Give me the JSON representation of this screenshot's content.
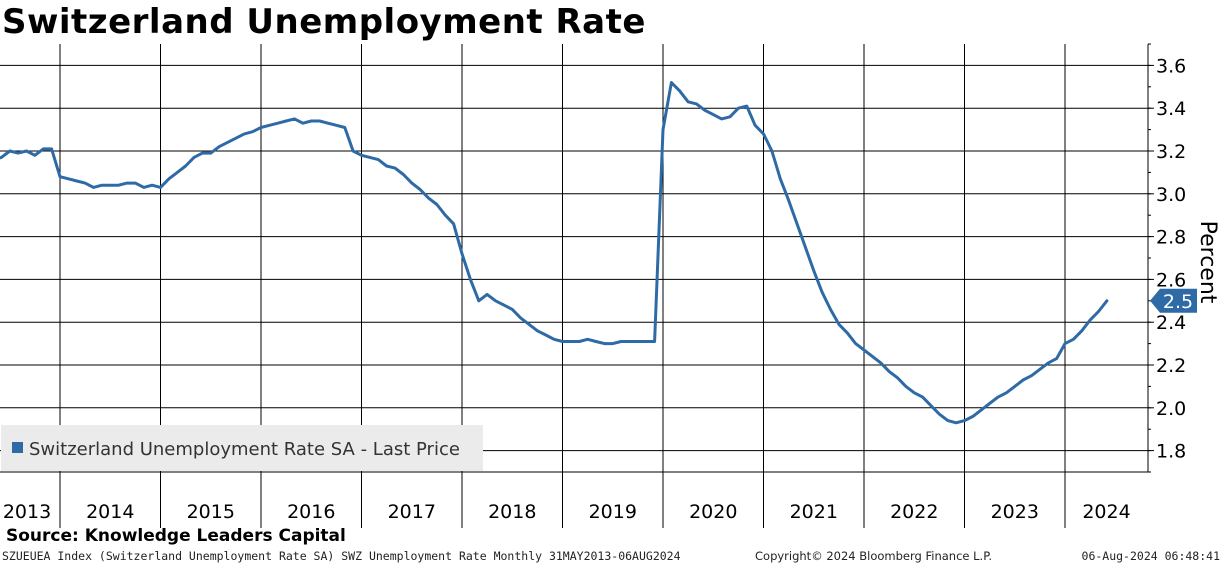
{
  "title": "Switzerland Unemployment Rate",
  "source": "Source: Knowledge Leaders Capital",
  "footer": {
    "description": "SZUEUEA Index (Switzerland Unemployment Rate SA) SWZ Unemployment Rate  Monthly 31MAY2013-06AUG2024",
    "copyright": "Copyright© 2024 Bloomberg Finance L.P.",
    "timestamp": "06-Aug-2024 06:48:41"
  },
  "colors": {
    "series": "#2e6aa6",
    "grid": "#000000",
    "legend_bg": "#ebebeb",
    "last_price_tag": "#2e6aa6"
  },
  "chart_data": {
    "type": "line",
    "title": "Switzerland Unemployment Rate",
    "ylabel": "Percent",
    "ylim": [
      1.7,
      3.7
    ],
    "yticks": [
      1.8,
      2.0,
      2.2,
      2.4,
      2.6,
      2.8,
      3.0,
      3.2,
      3.4,
      3.6
    ],
    "ytick_labels": [
      "1.8",
      "2.0",
      "2.2",
      "2.4",
      "2.6",
      "2.8",
      "3.0",
      "3.2",
      "3.4",
      "3.6"
    ],
    "year_labels": [
      "2013",
      "2014",
      "2015",
      "2016",
      "2017",
      "2018",
      "2019",
      "2020",
      "2021",
      "2022",
      "2023",
      "2024"
    ],
    "grid": true,
    "legend_position": "bottom-left",
    "last_value_label": "2.5",
    "series": [
      {
        "name": "Switzerland Unemployment Rate SA - Last Price",
        "x": [
          "2013-05",
          "2013-06",
          "2013-07",
          "2013-08",
          "2013-09",
          "2013-10",
          "2013-11",
          "2013-12",
          "2014-01",
          "2014-02",
          "2014-03",
          "2014-04",
          "2014-05",
          "2014-06",
          "2014-07",
          "2014-08",
          "2014-09",
          "2014-10",
          "2014-11",
          "2014-12",
          "2015-01",
          "2015-02",
          "2015-03",
          "2015-04",
          "2015-05",
          "2015-06",
          "2015-07",
          "2015-08",
          "2015-09",
          "2015-10",
          "2015-11",
          "2015-12",
          "2016-01",
          "2016-02",
          "2016-03",
          "2016-04",
          "2016-05",
          "2016-06",
          "2016-07",
          "2016-08",
          "2016-09",
          "2016-10",
          "2016-11",
          "2016-12",
          "2017-01",
          "2017-02",
          "2017-03",
          "2017-04",
          "2017-05",
          "2017-06",
          "2017-07",
          "2017-08",
          "2017-09",
          "2017-10",
          "2017-11",
          "2017-12",
          "2018-01",
          "2018-02",
          "2018-03",
          "2018-04",
          "2018-05",
          "2018-06",
          "2018-07",
          "2018-08",
          "2018-09",
          "2018-10",
          "2018-11",
          "2018-12",
          "2019-01",
          "2019-02",
          "2019-03",
          "2019-04",
          "2019-05",
          "2019-06",
          "2019-07",
          "2019-08",
          "2019-09",
          "2019-10",
          "2019-11",
          "2019-12",
          "2020-01",
          "2020-02",
          "2020-03",
          "2020-04",
          "2020-05",
          "2020-06",
          "2020-07",
          "2020-08",
          "2020-09",
          "2020-10",
          "2020-11",
          "2020-12",
          "2021-01",
          "2021-02",
          "2021-03",
          "2021-04",
          "2021-05",
          "2021-06",
          "2021-07",
          "2021-08",
          "2021-09",
          "2021-10",
          "2021-11",
          "2021-12",
          "2022-01",
          "2022-02",
          "2022-03",
          "2022-04",
          "2022-05",
          "2022-06",
          "2022-07",
          "2022-08",
          "2022-09",
          "2022-10",
          "2022-11",
          "2022-12",
          "2023-01",
          "2023-02",
          "2023-03",
          "2023-04",
          "2023-05",
          "2023-06",
          "2023-07",
          "2023-08",
          "2023-09",
          "2023-10",
          "2023-11",
          "2023-12",
          "2024-01",
          "2024-02",
          "2024-03",
          "2024-04",
          "2024-05",
          "2024-06"
        ],
        "values": [
          3.16,
          3.17,
          3.2,
          3.19,
          3.2,
          3.18,
          3.21,
          3.21,
          3.08,
          3.07,
          3.06,
          3.05,
          3.03,
          3.04,
          3.04,
          3.04,
          3.05,
          3.05,
          3.03,
          3.04,
          3.03,
          3.07,
          3.1,
          3.13,
          3.17,
          3.19,
          3.19,
          3.22,
          3.24,
          3.26,
          3.28,
          3.29,
          3.31,
          3.32,
          3.33,
          3.34,
          3.35,
          3.33,
          3.34,
          3.34,
          3.33,
          3.32,
          3.31,
          3.2,
          3.18,
          3.17,
          3.16,
          3.13,
          3.12,
          3.09,
          3.05,
          3.02,
          2.98,
          2.95,
          2.9,
          2.86,
          2.72,
          2.6,
          2.5,
          2.53,
          2.5,
          2.48,
          2.46,
          2.42,
          2.39,
          2.36,
          2.34,
          2.32,
          2.31,
          2.31,
          2.31,
          2.32,
          2.31,
          2.3,
          2.3,
          2.31,
          2.31,
          2.31,
          2.31,
          2.31,
          3.3,
          3.52,
          3.48,
          3.43,
          3.42,
          3.39,
          3.37,
          3.35,
          3.36,
          3.4,
          3.41,
          3.32,
          3.28,
          3.2,
          3.07,
          2.97,
          2.86,
          2.75,
          2.64,
          2.54,
          2.46,
          2.39,
          2.35,
          2.3,
          2.27,
          2.24,
          2.21,
          2.17,
          2.14,
          2.1,
          2.07,
          2.05,
          2.01,
          1.97,
          1.94,
          1.93,
          1.94,
          1.96,
          1.99,
          2.02,
          2.05,
          2.07,
          2.1,
          2.13,
          2.15,
          2.18,
          2.21,
          2.23,
          2.3,
          2.32,
          2.36,
          2.41,
          2.45,
          2.5
        ]
      }
    ]
  }
}
